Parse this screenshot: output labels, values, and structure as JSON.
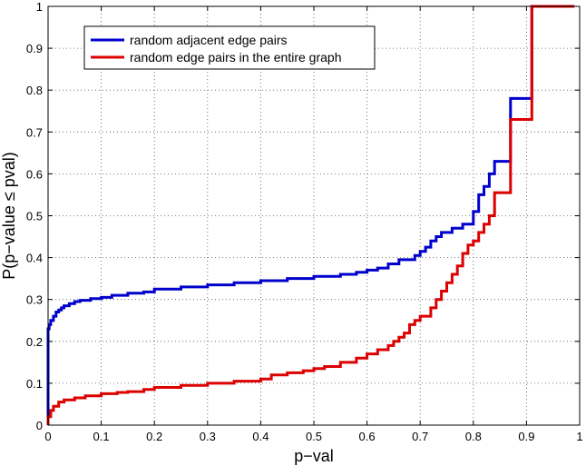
{
  "chart_data": {
    "type": "line",
    "title": "",
    "xlabel": "p−val",
    "ylabel": "P(p−value ≤ pval)",
    "xlim": [
      0,
      1
    ],
    "ylim": [
      0,
      1
    ],
    "xticks": [
      "0",
      "0.1",
      "0.2",
      "0.3",
      "0.4",
      "0.5",
      "0.6",
      "0.7",
      "0.8",
      "0.9",
      "1"
    ],
    "yticks": [
      "0",
      "0.1",
      "0.2",
      "0.3",
      "0.4",
      "0.5",
      "0.6",
      "0.7",
      "0.8",
      "0.9",
      "1"
    ],
    "grid": true,
    "legend_position": "top-left",
    "series": [
      {
        "name": "random adjacent edge pairs",
        "color": "#0000cc",
        "step": true,
        "x": [
          0,
          0.002,
          0.005,
          0.01,
          0.015,
          0.02,
          0.025,
          0.03,
          0.04,
          0.05,
          0.06,
          0.08,
          0.1,
          0.12,
          0.15,
          0.18,
          0.2,
          0.25,
          0.3,
          0.35,
          0.4,
          0.45,
          0.5,
          0.55,
          0.58,
          0.6,
          0.62,
          0.64,
          0.66,
          0.69,
          0.7,
          0.71,
          0.72,
          0.73,
          0.74,
          0.76,
          0.78,
          0.8,
          0.8,
          0.81,
          0.82,
          0.83,
          0.84,
          0.86,
          0.87,
          0.88,
          0.9,
          0.91,
          0.99
        ],
        "y": [
          0.23,
          0.24,
          0.25,
          0.26,
          0.27,
          0.275,
          0.28,
          0.285,
          0.29,
          0.295,
          0.298,
          0.302,
          0.305,
          0.31,
          0.315,
          0.318,
          0.325,
          0.33,
          0.335,
          0.34,
          0.345,
          0.35,
          0.355,
          0.36,
          0.365,
          0.37,
          0.375,
          0.385,
          0.395,
          0.405,
          0.415,
          0.425,
          0.44,
          0.45,
          0.46,
          0.47,
          0.48,
          0.5,
          0.51,
          0.55,
          0.57,
          0.6,
          0.63,
          0.63,
          0.78,
          0.78,
          0.78,
          1.0,
          1.0
        ]
      },
      {
        "name": "random edge pairs in the entire graph",
        "color": "#dd0000",
        "step": true,
        "x": [
          0,
          0.005,
          0.01,
          0.02,
          0.03,
          0.05,
          0.07,
          0.1,
          0.13,
          0.15,
          0.18,
          0.2,
          0.25,
          0.3,
          0.35,
          0.4,
          0.42,
          0.45,
          0.48,
          0.5,
          0.52,
          0.55,
          0.58,
          0.6,
          0.62,
          0.64,
          0.65,
          0.66,
          0.67,
          0.68,
          0.69,
          0.7,
          0.72,
          0.73,
          0.74,
          0.75,
          0.76,
          0.77,
          0.78,
          0.79,
          0.8,
          0.81,
          0.82,
          0.83,
          0.84,
          0.86,
          0.87,
          0.88,
          0.9,
          0.91,
          0.99
        ],
        "y": [
          0.02,
          0.035,
          0.045,
          0.055,
          0.06,
          0.065,
          0.07,
          0.075,
          0.078,
          0.08,
          0.085,
          0.09,
          0.095,
          0.1,
          0.105,
          0.11,
          0.12,
          0.125,
          0.13,
          0.135,
          0.14,
          0.15,
          0.16,
          0.17,
          0.18,
          0.19,
          0.2,
          0.21,
          0.22,
          0.24,
          0.25,
          0.26,
          0.28,
          0.3,
          0.32,
          0.34,
          0.36,
          0.38,
          0.41,
          0.43,
          0.44,
          0.46,
          0.48,
          0.5,
          0.555,
          0.555,
          0.73,
          0.73,
          0.73,
          1.0,
          1.0
        ]
      }
    ]
  }
}
